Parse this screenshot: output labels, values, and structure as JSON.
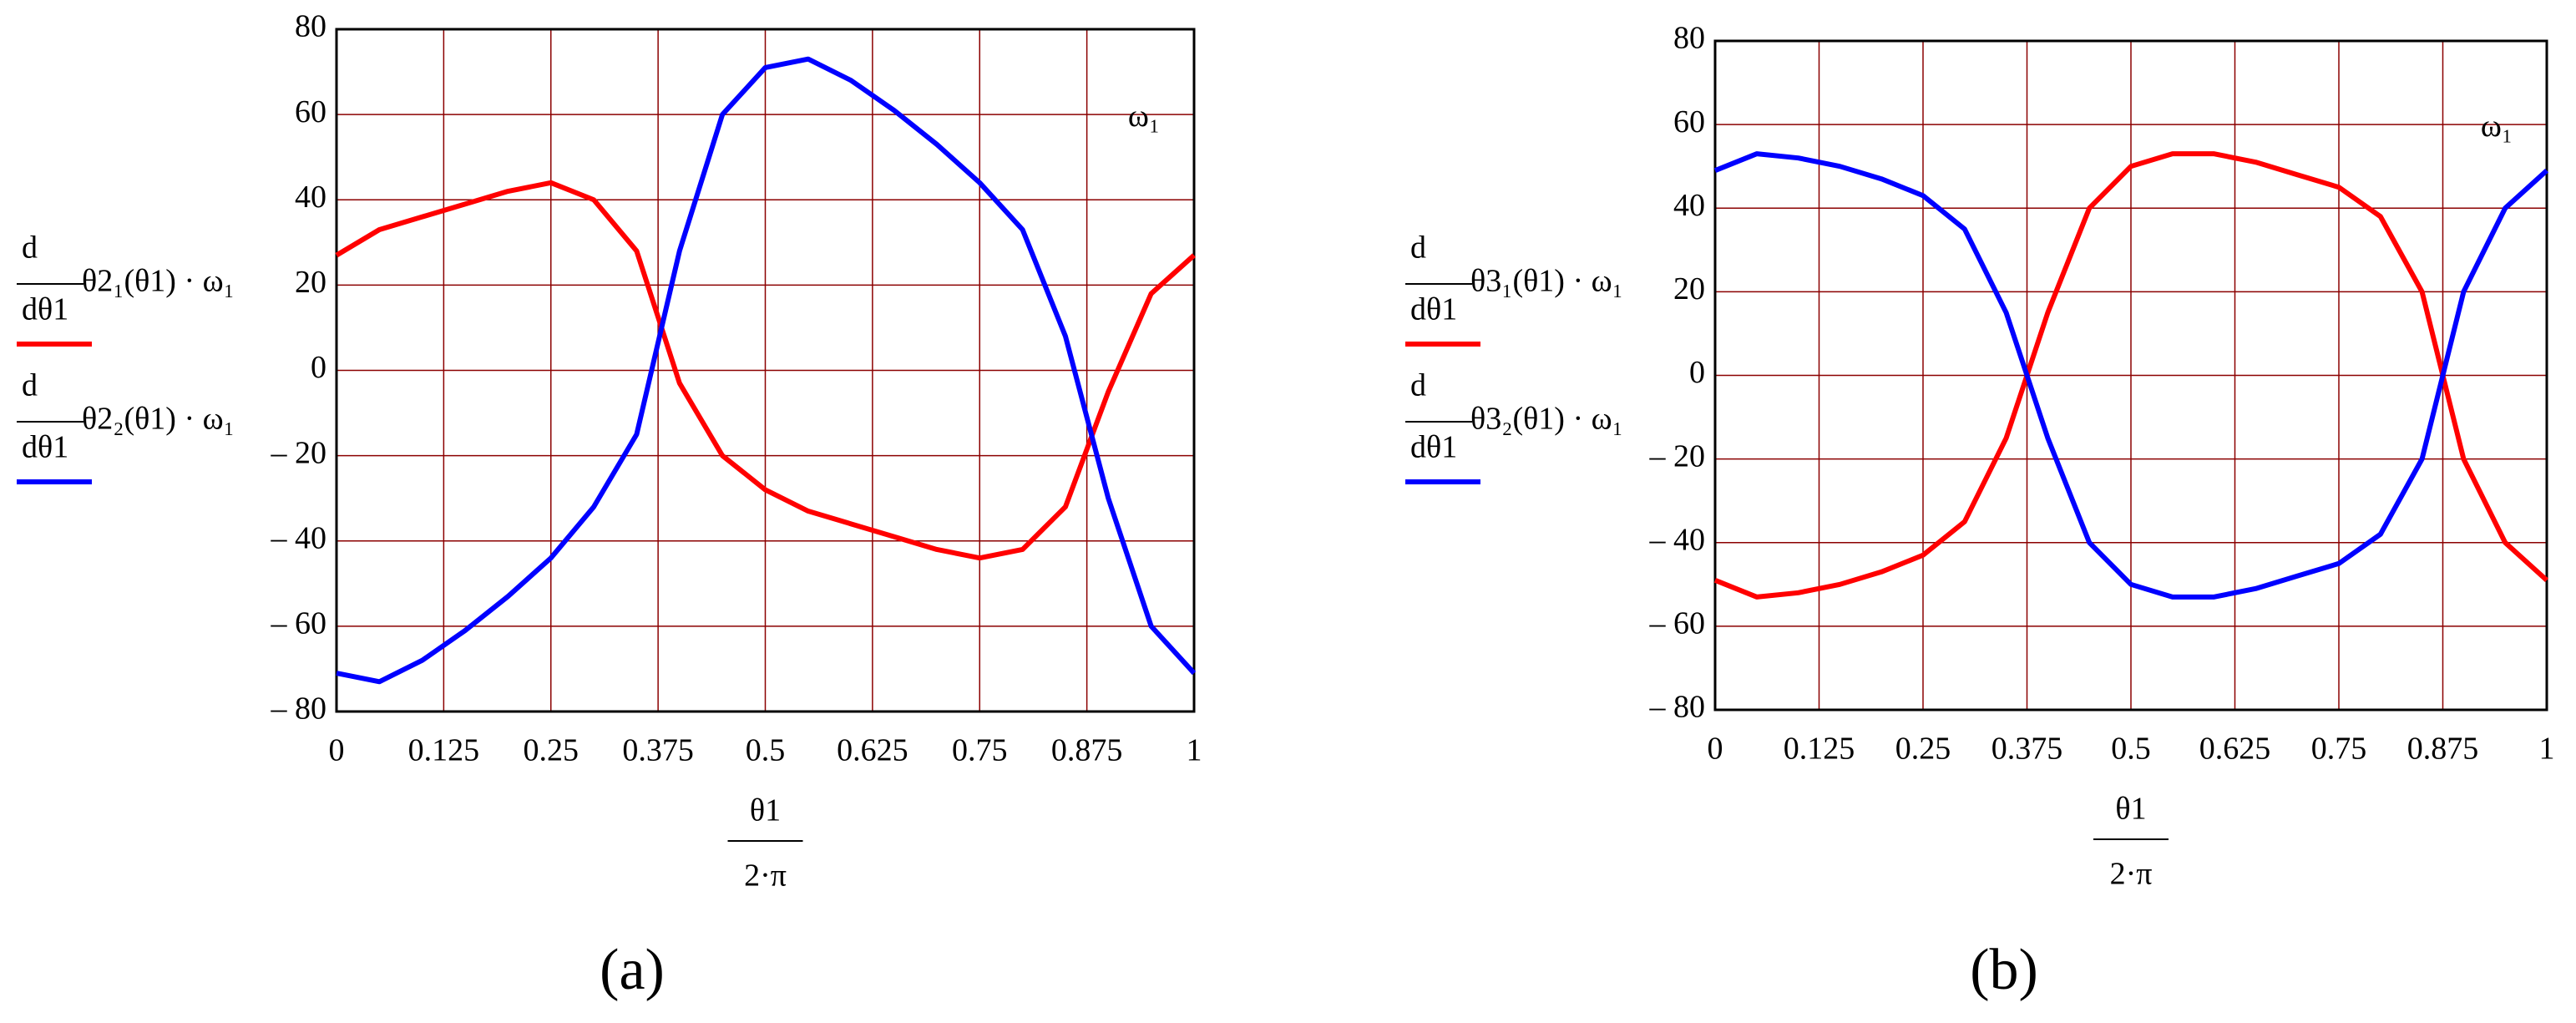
{
  "chart_data": [
    {
      "type": "line",
      "caption": "(a)",
      "annotation": "ω₁",
      "x_label": {
        "numerator": "θ1",
        "denominator": "2·π"
      },
      "x": [
        0,
        0.05,
        0.1,
        0.15,
        0.2,
        0.25,
        0.3,
        0.35,
        0.4,
        0.45,
        0.5,
        0.55,
        0.6,
        0.65,
        0.7,
        0.75,
        0.8,
        0.85,
        0.9,
        0.95,
        1
      ],
      "series": [
        {
          "name": "θ2₁(θ1) · ω₁",
          "name_numerator": "d",
          "name_denominator": "dθ1",
          "color": "#ff0000",
          "values": [
            27,
            33,
            36,
            39,
            42,
            44,
            40,
            28,
            -3,
            -20,
            -28,
            -33,
            -36,
            -39,
            -42,
            -44,
            -42,
            -32,
            -5,
            18,
            27
          ]
        },
        {
          "name": "θ2₂(θ1) · ω₁",
          "name_numerator": "d",
          "name_denominator": "dθ1",
          "color": "#0000ff",
          "values": [
            -71,
            -73,
            -68,
            -61,
            -53,
            -44,
            -32,
            -15,
            28,
            60,
            71,
            73,
            68,
            61,
            53,
            44,
            33,
            8,
            -30,
            -60,
            -71
          ]
        }
      ],
      "xlim": [
        0,
        1
      ],
      "xticks": [
        0,
        0.125,
        0.25,
        0.375,
        0.5,
        0.625,
        0.75,
        0.875,
        1
      ],
      "ylim": [
        -80,
        80
      ],
      "yticks": [
        {
          "value": -80,
          "label": "– 80"
        },
        {
          "value": -60,
          "label": "– 60"
        },
        {
          "value": -40,
          "label": "– 40"
        },
        {
          "value": -20,
          "label": "– 20"
        },
        0,
        20,
        40,
        60,
        80
      ],
      "grid": true
    },
    {
      "type": "line",
      "caption": "(b)",
      "annotation": "ω₁",
      "x_label": {
        "numerator": "θ1",
        "denominator": "2·π"
      },
      "x": [
        0,
        0.05,
        0.1,
        0.15,
        0.2,
        0.25,
        0.3,
        0.35,
        0.4,
        0.45,
        0.5,
        0.55,
        0.6,
        0.65,
        0.7,
        0.75,
        0.8,
        0.85,
        0.9,
        0.95,
        1
      ],
      "series": [
        {
          "name": "θ3₁(θ1) · ω₁",
          "name_numerator": "d",
          "name_denominator": "dθ1",
          "color": "#ff0000",
          "values": [
            -49,
            -53,
            -52,
            -50,
            -47,
            -43,
            -35,
            -15,
            15,
            40,
            50,
            53,
            53,
            51,
            48,
            45,
            38,
            20,
            -20,
            -40,
            -49
          ]
        },
        {
          "name": "θ3₂(θ1) · ω₁",
          "name_numerator": "d",
          "name_denominator": "dθ1",
          "color": "#0000ff",
          "values": [
            49,
            53,
            52,
            50,
            47,
            43,
            35,
            15,
            -15,
            -40,
            -50,
            -53,
            -53,
            -51,
            -48,
            -45,
            -38,
            -20,
            20,
            40,
            49
          ]
        }
      ],
      "xlim": [
        0,
        1
      ],
      "xticks": [
        0,
        0.125,
        0.25,
        0.375,
        0.5,
        0.625,
        0.75,
        0.875,
        1
      ],
      "ylim": [
        -80,
        80
      ],
      "yticks": [
        {
          "value": -80,
          "label": "– 80"
        },
        {
          "value": -60,
          "label": "– 60"
        },
        {
          "value": -40,
          "label": "– 40"
        },
        {
          "value": -20,
          "label": "– 20"
        },
        0,
        20,
        40,
        60,
        80
      ],
      "grid": true
    }
  ]
}
